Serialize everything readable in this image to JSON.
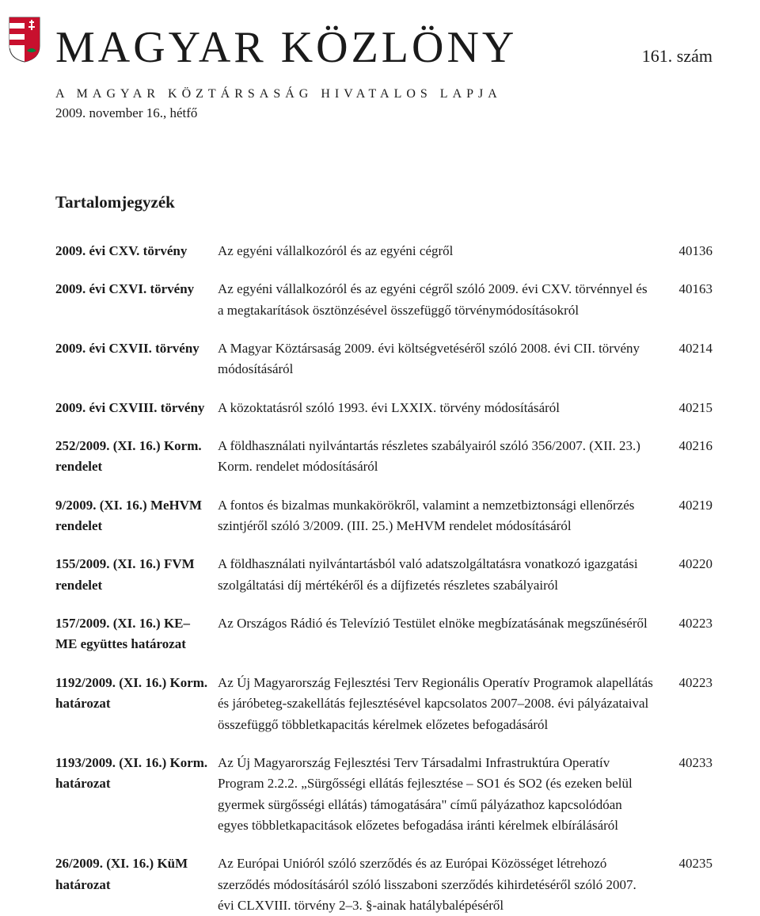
{
  "masthead": {
    "title": "MAGYAR KÖZLÖNY",
    "issue_number": "161. szám",
    "subtitle": "A MAGYAR KÖZTÁRSASÁG HIVATALOS LAPJA",
    "issue_date": "2009. november 16., hétfő"
  },
  "toc": {
    "heading": "Tartalomjegyzék",
    "entries": [
      {
        "left": "2009. évi CXV. törvény",
        "desc": "Az egyéni vállalkozóról és az egyéni cégről",
        "page": "40136"
      },
      {
        "left": "2009. évi CXVI. törvény",
        "desc": "Az egyéni vállalkozóról és az egyéni cégről szóló 2009. évi CXV. törvénnyel és a megtakarítások ösztönzésével összefüggő törvénymódosításokról",
        "page": "40163"
      },
      {
        "left": "2009. évi CXVII. törvény",
        "desc": "A Magyar Köztársaság 2009. évi költségvetéséről szóló 2008. évi CII. törvény módosításáról",
        "page": "40214"
      },
      {
        "left": "2009. évi CXVIII. törvény",
        "desc": "A közoktatásról szóló 1993. évi LXXIX. törvény módosításáról",
        "page": "40215"
      },
      {
        "left": "252/2009. (XI. 16.) Korm. rendelet",
        "desc": "A földhasználati nyilvántartás részletes szabályairól szóló 356/2007. (XII. 23.) Korm. rendelet módosításáról",
        "page": "40216"
      },
      {
        "left": "9/2009. (XI. 16.) MeHVM rendelet",
        "desc": "A fontos és bizalmas munkakörökről, valamint a nemzetbiztonsági ellenőrzés szintjéről szóló 3/2009. (III. 25.) MeHVM rendelet módosításáról",
        "page": "40219"
      },
      {
        "left": "155/2009. (XI. 16.) FVM rendelet",
        "desc": "A földhasználati nyilvántartásból való adatszolgáltatásra vonatkozó igazgatási szolgáltatási díj mértékéről és a díjfizetés részletes szabályairól",
        "page": "40220"
      },
      {
        "left": "157/2009. (XI. 16.) KE–ME együttes határozat",
        "desc": "Az Országos Rádió és Televízió Testület elnöke megbízatásának megszűnéséről",
        "page": "40223"
      },
      {
        "left": "1192/2009. (XI. 16.) Korm. határozat",
        "desc": "Az Új Magyarország Fejlesztési Terv Regionális Operatív Programok alapellátás és járóbeteg-szakellátás fejlesztésével kapcsolatos 2007–2008. évi pályázataival összefüggő többletkapacitás kérelmek előzetes befogadásáról",
        "page": "40223"
      },
      {
        "left": "1193/2009. (XI. 16.) Korm. határozat",
        "desc": "Az Új Magyarország Fejlesztési Terv Társadalmi Infrastruktúra Operatív Program 2.2.2. „Sürgősségi ellátás fejlesztése – SO1 és SO2 (és ezeken belül gyermek sürgősségi ellátás) támogatására\" című pályázathoz kapcsolódóan egyes többletkapacitások előzetes befogadása iránti kérelmek elbírálásáról",
        "page": "40233"
      },
      {
        "left": "26/2009. (XI. 16.) KüM határozat",
        "desc": "Az Európai Unióról szóló szerződés és az Európai Közösséget létrehozó szerződés módosításáról szóló lisszaboni szerződés kihirdetéséről szóló 2007. évi CLXVIII. törvény 2–3. §-ainak hatálybalépéséről",
        "page": "40235"
      }
    ]
  },
  "crest_colors": {
    "red": "#c8102e",
    "green": "#00843d",
    "white": "#ffffff",
    "gold": "#d4af37",
    "outline": "#333333"
  }
}
